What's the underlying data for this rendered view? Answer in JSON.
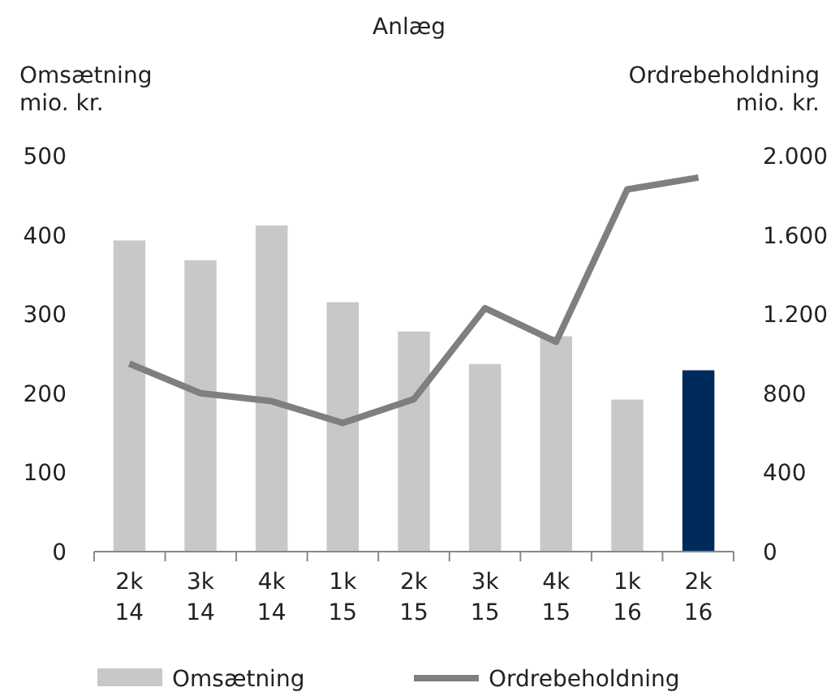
{
  "chart_data": {
    "type": "bar",
    "title": "Anlæg",
    "ylabel": "Omsætning\nmio. kr.",
    "y2label": "Ordrebeholdning\nmio. kr.",
    "categories": [
      "2k\n14",
      "3k\n14",
      "4k\n14",
      "1k\n15",
      "2k\n15",
      "3k\n15",
      "4k\n15",
      "1k\n16",
      "2k\n16"
    ],
    "series": [
      {
        "name": "Omsætning",
        "color": "#c8c8c8",
        "colors": [
          "#c8c8c8",
          "#c8c8c8",
          "#c8c8c8",
          "#c8c8c8",
          "#c8c8c8",
          "#c8c8c8",
          "#c8c8c8",
          "#c8c8c8",
          "#002a5c"
        ],
        "values": [
          393,
          368,
          412,
          315,
          278,
          237,
          272,
          192,
          229
        ]
      },
      {
        "name": "Ordrebeholdning",
        "type": "line",
        "axis": "y2",
        "color": "#7f7f7f",
        "values": [
          950,
          800,
          760,
          650,
          770,
          1230,
          1060,
          1830,
          1890
        ]
      }
    ],
    "ylim": [
      0,
      500
    ],
    "yticks": [
      0,
      100,
      200,
      300,
      400,
      500
    ],
    "y2lim": [
      0,
      2000
    ],
    "y2ticks": [
      0,
      {
        "value": 400,
        "label": "400"
      },
      {
        "value": 800,
        "label": "800"
      },
      {
        "value": 1200,
        "label": "1.200"
      },
      {
        "value": 1600,
        "label": "1.600"
      },
      {
        "value": 2000,
        "label": "2.000"
      }
    ],
    "grid": false,
    "legend": "bottom",
    "marker": "none",
    "line_style": "solid"
  }
}
